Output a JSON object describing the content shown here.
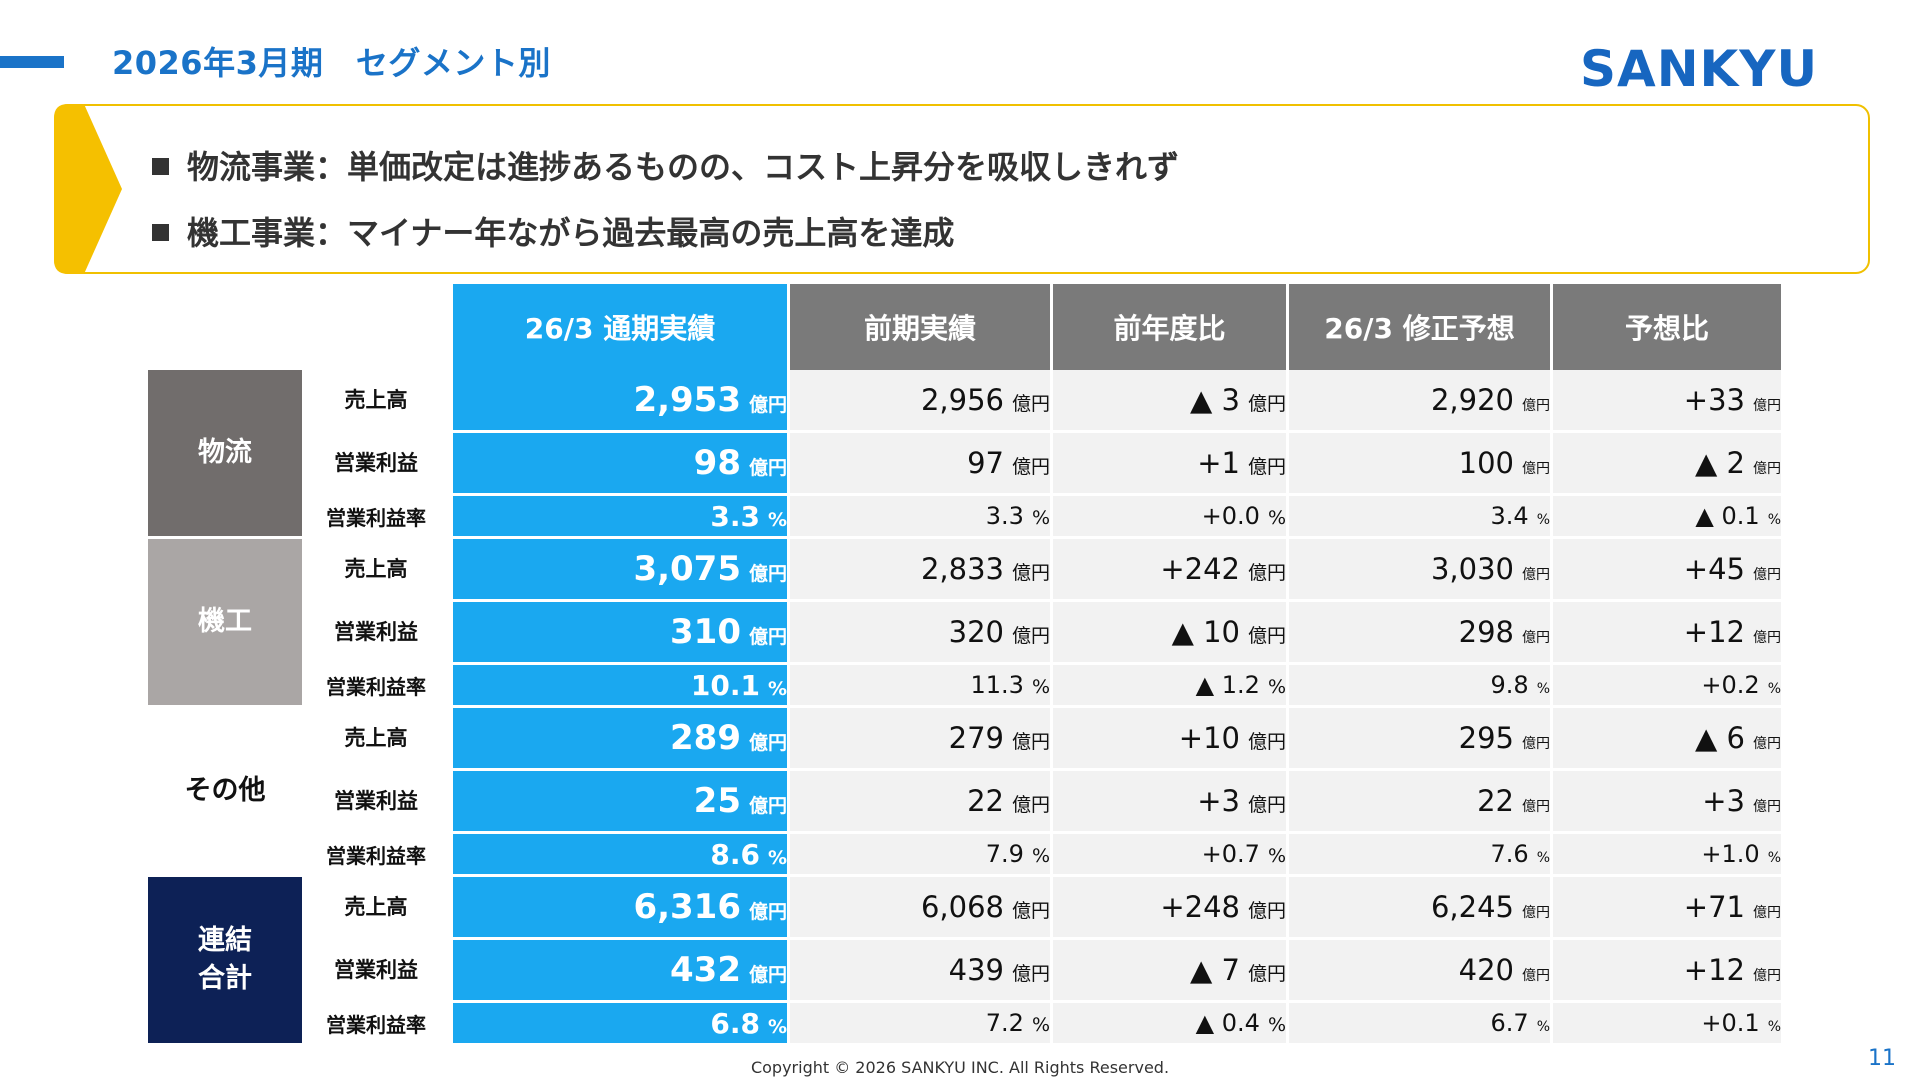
{
  "header": {
    "title": "2026年3月期　セグメント別",
    "logo": "SANKYU",
    "accent_color": "#1a73c8"
  },
  "banner": {
    "lines": [
      "物流事業：単価改定は進捗あるものの、コスト上昇分を吸収しきれず",
      "機工事業：マイナー年ながら過去最高の売上高を達成"
    ],
    "border_color": "#f0c000"
  },
  "table": {
    "columns": [
      "26/3 通期実績",
      "前期実績",
      "前年度比",
      "26/3 修正予想",
      "予想比"
    ],
    "groups": [
      {
        "name": "物流",
        "rows": [
          {
            "label": "売上高",
            "cells": [
              [
                "2,953",
                "億円"
              ],
              [
                "2,956",
                "億円"
              ],
              [
                "▲ 3",
                "億円"
              ],
              [
                "2,920",
                "億円"
              ],
              [
                "+33",
                "億円"
              ]
            ]
          },
          {
            "label": "営業利益",
            "cells": [
              [
                "98",
                "億円"
              ],
              [
                "97",
                "億円"
              ],
              [
                "+1",
                "億円"
              ],
              [
                "100",
                "億円"
              ],
              [
                "▲ 2",
                "億円"
              ]
            ]
          },
          {
            "label": "営業利益率",
            "cells": [
              [
                "3.3",
                "%"
              ],
              [
                "3.3",
                "%"
              ],
              [
                "+0.0",
                "%"
              ],
              [
                "3.4",
                "%"
              ],
              [
                "▲ 0.1",
                "%"
              ]
            ]
          }
        ]
      },
      {
        "name": "機工",
        "rows": [
          {
            "label": "売上高",
            "cells": [
              [
                "3,075",
                "億円"
              ],
              [
                "2,833",
                "億円"
              ],
              [
                "+242",
                "億円"
              ],
              [
                "3,030",
                "億円"
              ],
              [
                "+45",
                "億円"
              ]
            ]
          },
          {
            "label": "営業利益",
            "cells": [
              [
                "310",
                "億円"
              ],
              [
                "320",
                "億円"
              ],
              [
                "▲ 10",
                "億円"
              ],
              [
                "298",
                "億円"
              ],
              [
                "+12",
                "億円"
              ]
            ]
          },
          {
            "label": "営業利益率",
            "cells": [
              [
                "10.1",
                "%"
              ],
              [
                "11.3",
                "%"
              ],
              [
                "▲ 1.2",
                "%"
              ],
              [
                "9.8",
                "%"
              ],
              [
                "+0.2",
                "%"
              ]
            ]
          }
        ]
      },
      {
        "name": "その他",
        "rows": [
          {
            "label": "売上高",
            "cells": [
              [
                "289",
                "億円"
              ],
              [
                "279",
                "億円"
              ],
              [
                "+10",
                "億円"
              ],
              [
                "295",
                "億円"
              ],
              [
                "▲ 6",
                "億円"
              ]
            ]
          },
          {
            "label": "営業利益",
            "cells": [
              [
                "25",
                "億円"
              ],
              [
                "22",
                "億円"
              ],
              [
                "+3",
                "億円"
              ],
              [
                "22",
                "億円"
              ],
              [
                "+3",
                "億円"
              ]
            ]
          },
          {
            "label": "営業利益率",
            "cells": [
              [
                "8.6",
                "%"
              ],
              [
                "7.9",
                "%"
              ],
              [
                "+0.7",
                "%"
              ],
              [
                "7.6",
                "%"
              ],
              [
                "+1.0",
                "%"
              ]
            ]
          }
        ]
      },
      {
        "name": "連結合計",
        "name_lines": [
          "連結",
          "合計"
        ],
        "rows": [
          {
            "label": "売上高",
            "cells": [
              [
                "6,316",
                "億円"
              ],
              [
                "6,068",
                "億円"
              ],
              [
                "+248",
                "億円"
              ],
              [
                "6,245",
                "億円"
              ],
              [
                "+71",
                "億円"
              ]
            ]
          },
          {
            "label": "営業利益",
            "cells": [
              [
                "432",
                "億円"
              ],
              [
                "439",
                "億円"
              ],
              [
                "▲ 7",
                "億円"
              ],
              [
                "420",
                "億円"
              ],
              [
                "+12",
                "億円"
              ]
            ]
          },
          {
            "label": "営業利益率",
            "cells": [
              [
                "6.8",
                "%"
              ],
              [
                "7.2",
                "%"
              ],
              [
                "▲ 0.4",
                "%"
              ],
              [
                "6.7",
                "%"
              ],
              [
                "+0.1",
                "%"
              ]
            ]
          }
        ]
      }
    ],
    "colors": {
      "current_column": "#1aa8f0",
      "header_gray": "#7a7a7a",
      "logistics": "#716d6c",
      "machinery": "#aaa6a5",
      "consolidated": "#0d2156",
      "cell_bg": "#f2f2f2"
    }
  },
  "footer": {
    "copyright": "Copyright © 2026 SANKYU INC. All Rights Reserved.",
    "page_number": "11"
  }
}
